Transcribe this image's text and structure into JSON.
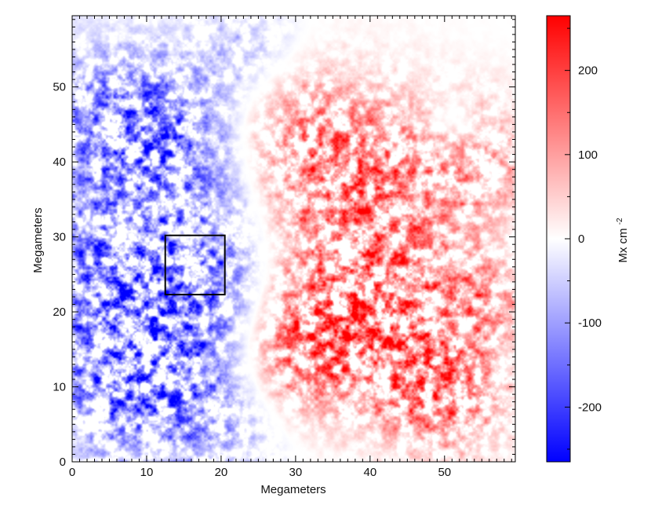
{
  "chart_data": {
    "type": "heatmap",
    "title": "",
    "xlabel": "Megameters",
    "ylabel": "Megameters",
    "xlim": [
      0,
      59.5
    ],
    "ylim": [
      0,
      59.5
    ],
    "x_ticks": [
      0,
      10,
      20,
      30,
      40,
      50
    ],
    "y_ticks": [
      0,
      10,
      20,
      30,
      40,
      50
    ],
    "colorbar": {
      "label": "Mx cm",
      "label_exponent": "-2",
      "range": [
        -265,
        265
      ],
      "ticks": [
        200,
        100,
        0,
        -100,
        -200
      ],
      "tick_labels": [
        "200",
        "100",
        "0",
        "-100",
        "-200"
      ],
      "colors": {
        "min": "#0000ff",
        "mid": "#ffffff",
        "max": "#ff0000"
      }
    },
    "field_regions": [
      {
        "polarity": "negative",
        "center": [
          6,
          46
        ],
        "radius": 7,
        "peak": -150
      },
      {
        "polarity": "negative",
        "center": [
          13,
          40
        ],
        "radius": 9,
        "peak": -190
      },
      {
        "polarity": "negative",
        "center": [
          5,
          26
        ],
        "radius": 6,
        "peak": -170
      },
      {
        "polarity": "negative",
        "center": [
          20,
          25
        ],
        "radius": 6,
        "peak": -140
      },
      {
        "polarity": "negative",
        "center": [
          11,
          16
        ],
        "radius": 8,
        "peak": -200
      },
      {
        "polarity": "negative",
        "center": [
          6,
          9
        ],
        "radius": 7,
        "peak": -160
      },
      {
        "polarity": "negative",
        "center": [
          20,
          5
        ],
        "radius": 6,
        "peak": -110
      },
      {
        "polarity": "negative",
        "center": [
          24,
          54
        ],
        "radius": 5,
        "peak": -80
      },
      {
        "polarity": "negative",
        "center": [
          51,
          45
        ],
        "radius": 2.5,
        "peak": -110
      },
      {
        "polarity": "positive",
        "center": [
          38,
          36
        ],
        "radius": 9,
        "peak": 230
      },
      {
        "polarity": "positive",
        "center": [
          29,
          45
        ],
        "radius": 6,
        "peak": 120
      },
      {
        "polarity": "positive",
        "center": [
          54,
          40
        ],
        "radius": 6,
        "peak": 130
      },
      {
        "polarity": "positive",
        "center": [
          35,
          20
        ],
        "radius": 7,
        "peak": 170
      },
      {
        "polarity": "positive",
        "center": [
          47,
          22
        ],
        "radius": 6,
        "peak": 120
      },
      {
        "polarity": "positive",
        "center": [
          31,
          14
        ],
        "radius": 6,
        "peak": 160
      },
      {
        "polarity": "positive",
        "center": [
          45,
          12
        ],
        "radius": 6,
        "peak": 130
      },
      {
        "polarity": "positive",
        "center": [
          51,
          9
        ],
        "radius": 6,
        "peak": 170
      },
      {
        "polarity": "positive",
        "center": [
          56,
          22
        ],
        "radius": 4,
        "peak": 120
      }
    ],
    "annotations": [
      {
        "type": "rectangle",
        "x": [
          12.5,
          20.5
        ],
        "y": [
          22.3,
          30.2
        ],
        "color": "#000000"
      }
    ]
  }
}
